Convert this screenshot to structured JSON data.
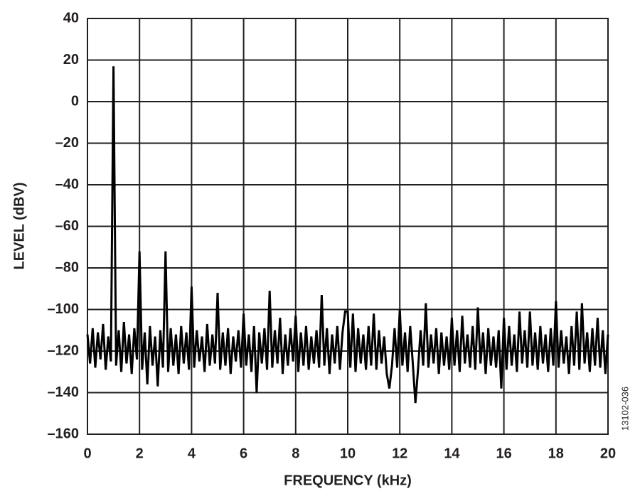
{
  "chart_data": {
    "type": "line",
    "x_label": "FREQUENCY (kHz)",
    "y_label": "LEVEL (dBV)",
    "annotation": "13102-036",
    "color": "#000000",
    "grid": true,
    "xlim": [
      0,
      20
    ],
    "xticks": [
      0,
      2,
      4,
      6,
      8,
      10,
      12,
      14,
      16,
      18,
      20
    ],
    "ylim": [
      -160,
      40
    ],
    "yticks": [
      {
        "value": -160,
        "label": "–160"
      },
      {
        "value": -140,
        "label": "–140"
      },
      {
        "value": -120,
        "label": "–120"
      },
      {
        "value": -100,
        "label": "–100"
      },
      {
        "value": -80,
        "label": "–80"
      },
      {
        "value": -60,
        "label": "–60"
      },
      {
        "value": -40,
        "label": "–40"
      },
      {
        "value": -20,
        "label": "–20"
      },
      0,
      20,
      40
    ],
    "x": [
      0,
      0.1,
      0.2,
      0.3,
      0.4,
      0.5,
      0.6,
      0.7,
      0.8,
      0.9,
      1,
      1.1,
      1.2,
      1.3,
      1.4,
      1.5,
      1.6,
      1.7,
      1.8,
      1.9,
      2,
      2.1,
      2.2,
      2.3,
      2.4,
      2.5,
      2.6,
      2.7,
      2.8,
      2.9,
      3,
      3.1,
      3.2,
      3.3,
      3.4,
      3.5,
      3.6,
      3.7,
      3.8,
      3.9,
      4,
      4.1,
      4.2,
      4.3,
      4.4,
      4.5,
      4.6,
      4.7,
      4.8,
      4.9,
      5,
      5.1,
      5.2,
      5.3,
      5.4,
      5.5,
      5.6,
      5.7,
      5.8,
      5.9,
      6,
      6.1,
      6.2,
      6.3,
      6.4,
      6.5,
      6.6,
      6.7,
      6.8,
      6.9,
      7,
      7.1,
      7.2,
      7.3,
      7.4,
      7.5,
      7.6,
      7.7,
      7.8,
      7.9,
      8,
      8.1,
      8.2,
      8.3,
      8.4,
      8.5,
      8.6,
      8.7,
      8.8,
      8.9,
      9,
      9.1,
      9.2,
      9.3,
      9.4,
      9.5,
      9.6,
      9.7,
      9.8,
      9.9,
      10,
      10.1,
      10.2,
      10.3,
      10.4,
      10.5,
      10.6,
      10.7,
      10.8,
      10.9,
      11,
      11.1,
      11.2,
      11.3,
      11.4,
      11.5,
      11.6,
      11.7,
      11.8,
      11.9,
      12,
      12.1,
      12.2,
      12.3,
      12.4,
      12.5,
      12.6,
      12.7,
      12.8,
      12.9,
      13,
      13.1,
      13.2,
      13.3,
      13.4,
      13.5,
      13.6,
      13.7,
      13.8,
      13.9,
      14,
      14.1,
      14.2,
      14.3,
      14.4,
      14.5,
      14.6,
      14.7,
      14.8,
      14.9,
      15,
      15.1,
      15.2,
      15.3,
      15.4,
      15.5,
      15.6,
      15.7,
      15.8,
      15.9,
      16,
      16.1,
      16.2,
      16.3,
      16.4,
      16.5,
      16.6,
      16.7,
      16.8,
      16.9,
      17,
      17.1,
      17.2,
      17.3,
      17.4,
      17.5,
      17.6,
      17.7,
      17.8,
      17.9,
      18,
      18.1,
      18.2,
      18.3,
      18.4,
      18.5,
      18.6,
      18.7,
      18.8,
      18.9,
      19,
      19.1,
      19.2,
      19.3,
      19.4,
      19.5,
      19.6,
      19.7,
      19.8,
      19.9,
      20
    ],
    "values": [
      -112,
      -126,
      -109,
      -128,
      -111,
      -124,
      -107,
      -129,
      -113,
      -125,
      17,
      -127,
      -110,
      -130,
      -106,
      -126,
      -112,
      -131,
      -109,
      -124,
      -72,
      -129,
      -111,
      -136,
      -108,
      -127,
      -113,
      -137,
      -110,
      -128,
      -72,
      -130,
      -109,
      -127,
      -112,
      -131,
      -108,
      -126,
      -111,
      -129,
      -89,
      -128,
      -110,
      -125,
      -113,
      -130,
      -107,
      -127,
      -112,
      -126,
      -92,
      -129,
      -111,
      -127,
      -109,
      -131,
      -113,
      -125,
      -110,
      -128,
      -102,
      -127,
      -112,
      -130,
      -108,
      -140,
      -111,
      -126,
      -109,
      -129,
      -91,
      -128,
      -110,
      -126,
      -104,
      -131,
      -112,
      -127,
      -109,
      -125,
      -103,
      -130,
      -111,
      -127,
      -108,
      -129,
      -113,
      -126,
      -110,
      -128,
      -93,
      -127,
      -109,
      -131,
      -112,
      -126,
      -108,
      -129,
      -111,
      -101,
      -101,
      -128,
      -102,
      -130,
      -109,
      -126,
      -112,
      -129,
      -108,
      -127,
      -102,
      -129,
      -110,
      -126,
      -113,
      -131,
      -138,
      -127,
      -109,
      -128,
      -100,
      -127,
      -111,
      -130,
      -108,
      -126,
      -145,
      -129,
      -110,
      -127,
      -97,
      -128,
      -112,
      -126,
      -109,
      -131,
      -111,
      -127,
      -113,
      -129,
      -104,
      -127,
      -110,
      -130,
      -103,
      -126,
      -112,
      -128,
      -108,
      -129,
      -99,
      -126,
      -111,
      -131,
      -109,
      -127,
      -113,
      -128,
      -110,
      -138,
      -104,
      -129,
      -108,
      -127,
      -112,
      -130,
      -101,
      -126,
      -110,
      -128,
      -101,
      -127,
      -111,
      -129,
      -108,
      -126,
      -112,
      -130,
      -109,
      -127,
      -96,
      -128,
      -110,
      -126,
      -113,
      -131,
      -108,
      -127,
      -101,
      -129,
      -97,
      -126,
      -111,
      -130,
      -109,
      -127,
      -104,
      -128,
      -110,
      -131,
      -112
    ]
  }
}
